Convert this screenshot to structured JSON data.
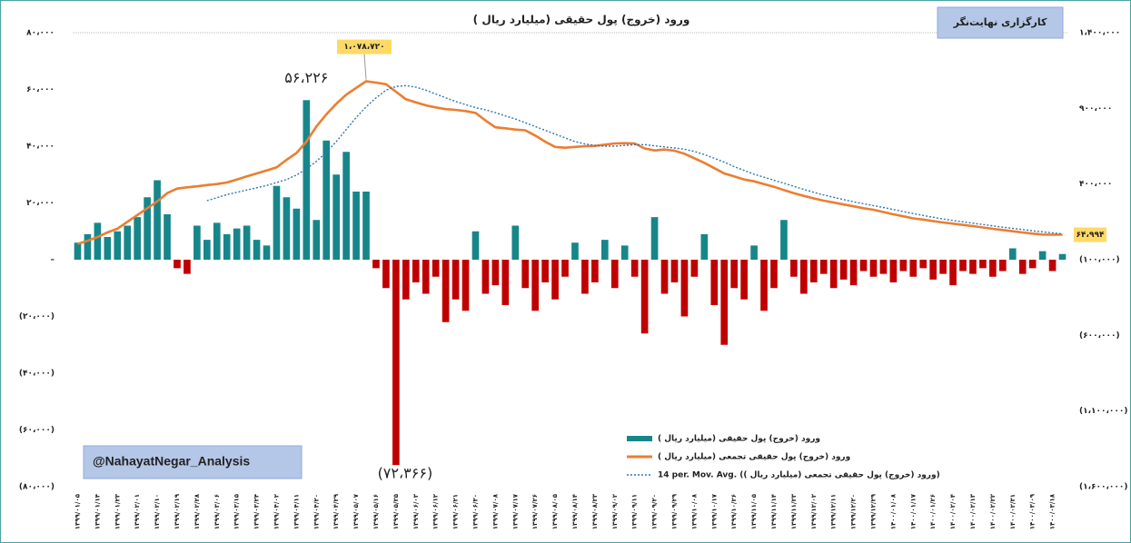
{
  "chart_data": {
    "type": "bar",
    "title": "ورود (خروج) پول حقیقی (میلیارد ریال )",
    "subtitle": "کارگزاری نهایت‌نگر",
    "annotations": [
      "@NahayatNegar_Analysis"
    ],
    "categories": [
      "۱۳۹۹/۰۱/۰۵",
      null,
      "۱۳۹۹/۰۱/۱۴",
      null,
      "۱۳۹۹/۰۱/۲۳",
      null,
      "۱۳۹۹/۰۲/۰۱",
      null,
      "۱۳۹۹/۰۲/۱۰",
      null,
      "۱۳۹۹/۰۲/۱۹",
      null,
      "۱۳۹۹/۰۲/۲۸",
      null,
      "۱۳۹۹/۰۳/۰۶",
      null,
      "۱۳۹۹/۰۳/۱۵",
      null,
      "۱۳۹۹/۰۳/۲۴",
      null,
      "۱۳۹۹/۰۴/۰۲",
      null,
      "۱۳۹۹/۰۴/۱۱",
      null,
      "۱۳۹۹/۰۴/۲۰",
      null,
      "۱۳۹۹/۰۴/۲۹",
      null,
      "۱۳۹۹/۰۵/۰۷",
      null,
      "۱۳۹۹/۰۵/۱۶",
      null,
      "۱۳۹۹/۰۵/۲۵",
      null,
      "۱۳۹۹/۰۶/۰۳",
      null,
      "۱۳۹۹/۰۶/۱۲",
      null,
      "۱۳۹۹/۰۶/۲۱",
      null,
      "۱۳۹۹/۰۶/۳۰",
      null,
      "۱۳۹۹/۰۷/۰۸",
      null,
      "۱۳۹۹/۰۷/۱۷",
      null,
      "۱۳۹۹/۰۷/۲۶",
      null,
      "۱۳۹۹/۰۸/۰۵",
      null,
      "۱۳۹۹/۰۸/۱۴",
      null,
      "۱۳۹۹/۰۸/۲۳",
      null,
      "۱۳۹۹/۰۹/۰۲",
      null,
      "۱۳۹۹/۰۹/۱۱",
      null,
      "۱۳۹۹/۰۹/۲۰",
      null,
      "۱۳۹۹/۰۹/۲۹",
      null,
      "۱۳۹۹/۱۰/۰۸",
      null,
      "۱۳۹۹/۱۰/۱۷",
      null,
      "۱۳۹۹/۱۰/۲۶",
      null,
      "۱۳۹۹/۱۱/۰۵",
      null,
      "۱۳۹۹/۱۱/۱۴",
      null,
      "۱۳۹۹/۱۱/۲۳",
      null,
      "۱۳۹۹/۱۲/۰۲",
      null,
      "۱۳۹۹/۱۲/۱۱",
      null,
      "۱۳۹۹/۱۲/۲۰",
      null,
      "۱۳۹۹/۱۲/۲۹",
      null,
      "۱۴۰۰/۰۱/۰۸",
      null,
      "۱۴۰۰/۰۱/۱۷",
      null,
      "۱۴۰۰/۰۱/۲۶",
      null,
      "۱۴۰۰/۰۲/۰۴",
      null,
      "۱۴۰۰/۰۲/۱۳",
      null,
      "۱۴۰۰/۰۲/۲۲",
      null,
      "۱۴۰۰/۰۲/۳۱",
      null,
      "۱۴۰۰/۰۳/۰۹",
      null,
      "۱۴۰۰/۰۳/۱۸",
      null
    ],
    "series": [
      {
        "name": "ورود (خروج) پول حقیقی (میلیارد ریال )",
        "type": "bar",
        "color": "#17868a",
        "negative_color": "#c00000",
        "values": [
          6000,
          9000,
          13000,
          8000,
          10000,
          12000,
          15000,
          22000,
          28000,
          16000,
          -3000,
          -5000,
          12000,
          7000,
          13000,
          9000,
          11000,
          12000,
          7000,
          5000,
          26000,
          22000,
          18000,
          56226,
          14000,
          42000,
          30000,
          38000,
          24000,
          24000,
          -3000,
          -10000,
          -72366,
          -14000,
          -8000,
          -12000,
          -6000,
          -22000,
          -14000,
          -18000,
          10000,
          -12000,
          -9000,
          -16000,
          12000,
          -10000,
          -18000,
          -8000,
          -14000,
          -6000,
          6000,
          -12000,
          -8000,
          7000,
          -10000,
          5000,
          -6000,
          -26000,
          15000,
          -12000,
          -8000,
          -20000,
          -6000,
          9000,
          -16000,
          -30000,
          -10000,
          -14000,
          5000,
          -18000,
          -10000,
          14000,
          -6000,
          -12000,
          -8000,
          -5000,
          -10000,
          -7000,
          -9000,
          -4000,
          -6000,
          -5000,
          -8000,
          -4000,
          -6000,
          -3000,
          -7000,
          -5000,
          -9000,
          -4000,
          -5000,
          -3000,
          -6000,
          -4000,
          4000,
          -5000,
          -3000,
          3000,
          -4000,
          2000
        ],
        "value_labels": [
          null,
          null,
          null,
          null,
          null,
          null,
          null,
          null,
          null,
          null,
          null,
          null,
          null,
          null,
          null,
          null,
          null,
          null,
          null,
          null,
          null,
          null,
          null,
          "۵۶،۲۲۶",
          null,
          null,
          null,
          null,
          null,
          null,
          null,
          null,
          "(۷۲،۳۶۶)",
          null,
          null,
          null,
          null,
          null,
          null,
          null,
          null,
          null,
          null,
          null,
          null,
          null,
          null,
          null,
          null,
          null,
          null,
          null,
          null,
          null,
          null,
          null,
          null,
          null,
          null,
          null,
          null,
          null,
          null,
          null,
          null,
          null,
          null,
          null,
          null,
          null,
          null,
          null,
          null,
          null,
          null,
          null,
          null,
          null,
          null,
          null,
          null,
          null,
          null,
          null,
          null,
          null,
          null,
          null,
          null,
          null,
          null,
          null,
          null,
          null,
          null,
          null,
          null,
          null,
          null,
          null
        ]
      },
      {
        "name": "ورود (خروج) پول حقیقی تجمعی (میلیارد ریال )",
        "type": "line",
        "axis": "y2",
        "color": "#ed7d31",
        "values": [
          5000,
          25000,
          50000,
          80000,
          105000,
          150000,
          195000,
          240000,
          285000,
          340000,
          370000,
          378000,
          385000,
          393000,
          400000,
          410000,
          430000,
          450000,
          470000,
          490000,
          510000,
          560000,
          605000,
          680000,
          780000,
          860000,
          930000,
          990000,
          1035000,
          1078720,
          1070000,
          1060000,
          1010000,
          960000,
          940000,
          920000,
          906000,
          895000,
          890000,
          882000,
          870000,
          820000,
          775000,
          768000,
          760000,
          755000,
          720000,
          680000,
          645000,
          640000,
          645000,
          650000,
          652000,
          660000,
          668000,
          670000,
          668000,
          635000,
          622000,
          628000,
          620000,
          600000,
          570000,
          540000,
          505000,
          470000,
          450000,
          430000,
          418000,
          400000,
          382000,
          360000,
          340000,
          322000,
          305000,
          290000,
          278000,
          265000,
          253000,
          240000,
          230000,
          215000,
          200000,
          187000,
          173000,
          165000,
          155000,
          146000,
          138000,
          130000,
          122000,
          113000,
          104000,
          96000,
          88000,
          80000,
          72000,
          66000,
          65000,
          64994
        ],
        "value_labels": [
          null,
          null,
          null,
          null,
          null,
          null,
          null,
          null,
          null,
          null,
          null,
          null,
          null,
          null,
          null,
          null,
          null,
          null,
          null,
          null,
          null,
          null,
          null,
          null,
          null,
          null,
          null,
          null,
          null,
          "۱،۰۷۸،۷۲۰",
          null,
          null,
          null,
          null,
          null,
          null,
          null,
          null,
          null,
          null,
          null,
          null,
          null,
          null,
          null,
          null,
          null,
          null,
          null,
          null,
          null,
          null,
          null,
          null,
          null,
          null,
          null,
          null,
          null,
          null,
          null,
          null,
          null,
          null,
          null,
          null,
          null,
          null,
          null,
          null,
          null,
          null,
          null,
          null,
          null,
          null,
          null,
          null,
          null,
          null,
          null,
          null,
          null,
          null,
          null,
          null,
          null,
          null,
          null,
          null,
          null,
          null,
          null,
          null,
          null,
          null,
          null,
          null,
          null,
          "۶۴،۹۹۴"
        ]
      },
      {
        "name": "14 per. Mov. Avg. (ورود (خروج) پول حقیقی تجمعی (میلیارد ریال ))",
        "type": "line",
        "axis": "y2",
        "color": "#2e75b6",
        "dashed": true,
        "values": [
          null,
          null,
          null,
          null,
          null,
          null,
          null,
          null,
          null,
          null,
          null,
          null,
          null,
          290000,
          310000,
          330000,
          345000,
          360000,
          375000,
          390000,
          410000,
          430000,
          460000,
          500000,
          550000,
          610000,
          680000,
          760000,
          840000,
          910000,
          970000,
          1020000,
          1045000,
          1050000,
          1040000,
          1020000,
          995000,
          970000,
          945000,
          925000,
          905000,
          890000,
          872000,
          850000,
          830000,
          805000,
          780000,
          755000,
          730000,
          705000,
          680000,
          665000,
          655000,
          650000,
          650000,
          655000,
          660000,
          660000,
          652000,
          645000,
          638000,
          630000,
          615000,
          595000,
          570000,
          545000,
          515000,
          490000,
          465000,
          445000,
          425000,
          405000,
          385000,
          365000,
          345000,
          328000,
          312000,
          297000,
          283000,
          270000,
          257000,
          245000,
          232000,
          218000,
          205000,
          192000,
          180000,
          169000,
          159000,
          150000,
          141000,
          132000,
          124000,
          115000,
          107000,
          99000,
          91000,
          84000,
          77000,
          71000
        ]
      }
    ],
    "ylim": [
      -80000,
      80000
    ],
    "yticks": [
      {
        "value": 80000,
        "label": "۸۰،۰۰۰"
      },
      {
        "value": 60000,
        "label": "۶۰،۰۰۰"
      },
      {
        "value": 40000,
        "label": "۴۰،۰۰۰"
      },
      {
        "value": 20000,
        "label": "۲۰،۰۰۰"
      },
      {
        "value": 0,
        "label": "–"
      },
      {
        "value": -20000,
        "label": "(۲۰،۰۰۰)"
      },
      {
        "value": -40000,
        "label": "(۴۰،۰۰۰)"
      },
      {
        "value": -60000,
        "label": "(۶۰،۰۰۰)"
      },
      {
        "value": -80000,
        "label": "(۸۰،۰۰۰)"
      }
    ],
    "y2lim": [
      -1600000,
      1400000
    ],
    "y2ticks": [
      {
        "value": 1400000,
        "label": "۱،۴۰۰،۰۰۰"
      },
      {
        "value": 900000,
        "label": "۹۰۰،۰۰۰"
      },
      {
        "value": 400000,
        "label": "۴۰۰،۰۰۰"
      },
      {
        "value": -100000,
        "label": "(۱۰۰،۰۰۰)"
      },
      {
        "value": -600000,
        "label": "(۶۰۰،۰۰۰)"
      },
      {
        "value": -1100000,
        "label": "(۱،۱۰۰،۰۰۰)"
      },
      {
        "value": -1600000,
        "label": "(۱،۶۰۰،۰۰۰)"
      }
    ],
    "grid": false,
    "legend": "lower right"
  }
}
